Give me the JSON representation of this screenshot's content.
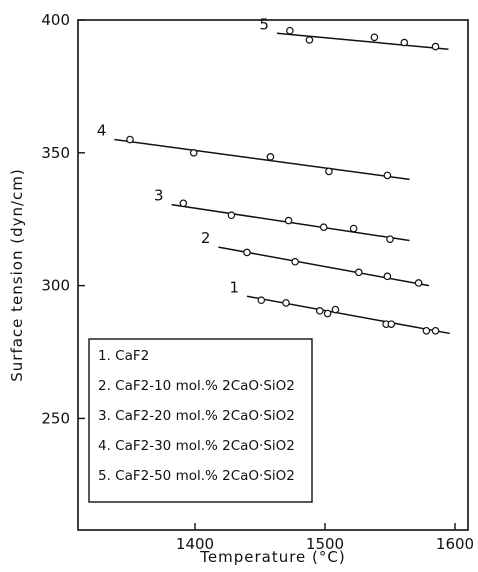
{
  "chart_data": {
    "type": "scatter",
    "xlabel": "Temperature  (°C)",
    "ylabel": "Surface  tension  (dyn/cm)",
    "xlim": [
      1310,
      1610
    ],
    "ylim": [
      208,
      400
    ],
    "x_ticks": [
      "1400",
      "1500",
      "1600"
    ],
    "y_ticks": [
      "250",
      "300",
      "350",
      "400"
    ],
    "grid": false,
    "legend_position": "bottom-left",
    "series": [
      {
        "label": "1",
        "legend": "1. CaF2",
        "points": [
          [
            1451,
            294.5
          ],
          [
            1470,
            293.5
          ],
          [
            1496,
            290.5
          ],
          [
            1502,
            289.5
          ],
          [
            1508,
            291
          ],
          [
            1547,
            285.5
          ],
          [
            1551,
            285.5
          ],
          [
            1578,
            283
          ],
          [
            1585,
            283
          ]
        ],
        "fit": [
          [
            1440,
            296
          ],
          [
            1596,
            282
          ]
        ]
      },
      {
        "label": "2",
        "legend": "2. CaF2-10 mol.% 2CaO·SiO2",
        "points": [
          [
            1440,
            312.5
          ],
          [
            1477,
            309
          ],
          [
            1526,
            305
          ],
          [
            1548,
            303.5
          ],
          [
            1572,
            301
          ]
        ],
        "fit": [
          [
            1418,
            314.5
          ],
          [
            1580,
            300
          ]
        ]
      },
      {
        "label": "3",
        "legend": "3. CaF2-20 mol.% 2CaO·SiO2",
        "points": [
          [
            1391,
            331
          ],
          [
            1428,
            326.5
          ],
          [
            1472,
            324.5
          ],
          [
            1499,
            322
          ],
          [
            1522,
            321.5
          ],
          [
            1550,
            317.5
          ]
        ],
        "fit": [
          [
            1382,
            330.5
          ],
          [
            1565,
            317
          ]
        ]
      },
      {
        "label": "4",
        "legend": "4. CaF2-30 mol.% 2CaO·SiO2",
        "points": [
          [
            1350,
            355
          ],
          [
            1399,
            350
          ],
          [
            1458,
            348.5
          ],
          [
            1503,
            343
          ],
          [
            1548,
            341.5
          ]
        ],
        "fit": [
          [
            1338,
            355
          ],
          [
            1565,
            340
          ]
        ]
      },
      {
        "label": "5",
        "legend": "5. CaF2-50 mol.% 2CaO·SiO2",
        "points": [
          [
            1473,
            396
          ],
          [
            1488,
            392.5
          ],
          [
            1538,
            393.5
          ],
          [
            1561,
            391.5
          ],
          [
            1585,
            390
          ]
        ],
        "fit": [
          [
            1463,
            395
          ],
          [
            1595,
            389
          ]
        ]
      }
    ]
  }
}
